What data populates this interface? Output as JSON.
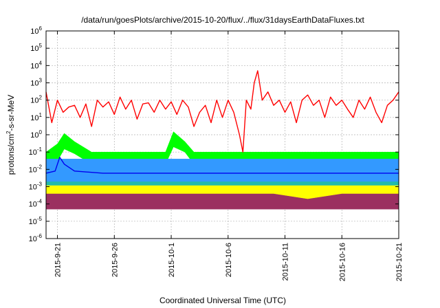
{
  "chart_data": {
    "type": "line",
    "title": "/data/run/goesPlots/archive/2015-10-20/flux/../flux/31daysEarthDataFluxes.txt",
    "xlabel": "Coordinated Universal Time (UTC)",
    "ylabel": {
      "base": "protons/cm",
      "sup": "2",
      "tail": "-s-sr-MeV"
    },
    "x_range": [
      "2015-09-20",
      "2015-10-21"
    ],
    "x_ticks": [
      {
        "date": "2015-09-21",
        "label": "2015-9-21"
      },
      {
        "date": "2015-09-26",
        "label": "2015-9-26"
      },
      {
        "date": "2015-10-01",
        "label": "2015-10-1"
      },
      {
        "date": "2015-10-06",
        "label": "2015-10-6"
      },
      {
        "date": "2015-10-11",
        "label": "2015-10-11"
      },
      {
        "date": "2015-10-16",
        "label": "2015-10-16"
      },
      {
        "date": "2015-10-21",
        "label": "2015-10-21"
      }
    ],
    "y_scale": "log",
    "y_range": [
      1e-06,
      1000000.0
    ],
    "y_ticks": [
      {
        "exp": -6
      },
      {
        "exp": -5
      },
      {
        "exp": -4
      },
      {
        "exp": -3
      },
      {
        "exp": -2
      },
      {
        "exp": -1
      },
      {
        "exp": 0
      },
      {
        "exp": 1
      },
      {
        "exp": 2
      },
      {
        "exp": 3
      },
      {
        "exp": 4
      },
      {
        "exp": 5
      },
      {
        "exp": 6
      }
    ],
    "grid": true,
    "series": [
      {
        "color": "#9b3060",
        "style": "band",
        "x": [
          "2015-09-20",
          "2015-09-25",
          "2015-09-30",
          "2015-10-05",
          "2015-10-10",
          "2015-10-13",
          "2015-10-16",
          "2015-10-21"
        ],
        "low": [
          5e-05,
          5e-05,
          5e-05,
          5e-05,
          5e-05,
          5e-05,
          5e-05,
          5e-05
        ],
        "high": [
          0.0005,
          0.0005,
          0.0005,
          0.0005,
          0.0005,
          0.0004,
          0.0005,
          0.0005
        ]
      },
      {
        "color": "#ffff00",
        "style": "band",
        "x": [
          "2015-09-20",
          "2015-09-25",
          "2015-09-30",
          "2015-10-05",
          "2015-10-10",
          "2015-10-13",
          "2015-10-16",
          "2015-10-21"
        ],
        "low": [
          0.0004,
          0.0004,
          0.0004,
          0.0004,
          0.0004,
          0.0002,
          0.0004,
          0.0004
        ],
        "high": [
          0.0015,
          0.0015,
          0.0015,
          0.0015,
          0.0015,
          0.0012,
          0.0015,
          0.0015
        ]
      },
      {
        "color": "#22bbaa",
        "style": "band",
        "x": [
          "2015-09-20",
          "2015-09-25",
          "2015-09-30",
          "2015-10-05",
          "2015-10-10",
          "2015-10-15",
          "2015-10-21"
        ],
        "low": [
          0.0012,
          0.0012,
          0.0012,
          0.0012,
          0.0012,
          0.0012,
          0.0012
        ],
        "high": [
          0.005,
          0.005,
          0.005,
          0.005,
          0.005,
          0.005,
          0.005
        ]
      },
      {
        "color": "#00ff00",
        "style": "band",
        "x": [
          "2015-09-20",
          "2015-09-21",
          "2015-09-21.6",
          "2015-09-22.5",
          "2015-09-24",
          "2015-09-30.5",
          "2015-10-01.2",
          "2015-10-02.2",
          "2015-10-03",
          "2015-10-10",
          "2015-10-21"
        ],
        "low": [
          0.02,
          0.03,
          0.15,
          0.08,
          0.02,
          0.02,
          0.2,
          0.1,
          0.02,
          0.02,
          0.02
        ],
        "high": [
          0.1,
          0.3,
          1.2,
          0.4,
          0.1,
          0.1,
          1.5,
          0.4,
          0.1,
          0.1,
          0.1
        ]
      },
      {
        "color": "#3399ff",
        "style": "band",
        "x": [
          "2015-09-20",
          "2015-09-25",
          "2015-09-30",
          "2015-10-05",
          "2015-10-10",
          "2015-10-15",
          "2015-10-21"
        ],
        "low": [
          0.002,
          0.002,
          0.002,
          0.002,
          0.002,
          0.002,
          0.002
        ],
        "high": [
          0.04,
          0.04,
          0.04,
          0.04,
          0.04,
          0.04,
          0.04
        ]
      },
      {
        "color": "#0000ee",
        "style": "line",
        "x": [
          "2015-09-20",
          "2015-09-20.8",
          "2015-09-21.2",
          "2015-09-21.6",
          "2015-09-22.5",
          "2015-09-25",
          "2015-09-30",
          "2015-10-05",
          "2015-10-10",
          "2015-10-15",
          "2015-10-21"
        ],
        "y": [
          0.006,
          0.008,
          0.05,
          0.02,
          0.008,
          0.006,
          0.006,
          0.006,
          0.006,
          0.006,
          0.006
        ]
      },
      {
        "color": "#ff0000",
        "style": "line",
        "x": [
          "2015-09-20",
          "2015-09-20.5",
          "2015-09-21",
          "2015-09-21.5",
          "2015-09-22",
          "2015-09-22.5",
          "2015-09-23",
          "2015-09-23.5",
          "2015-09-24",
          "2015-09-24.5",
          "2015-09-25",
          "2015-09-25.5",
          "2015-09-26",
          "2015-09-26.5",
          "2015-09-27",
          "2015-09-27.5",
          "2015-09-28",
          "2015-09-28.5",
          "2015-09-29",
          "2015-09-29.5",
          "2015-09-30",
          "2015-09-30.5",
          "2015-10-01",
          "2015-10-01.5",
          "2015-10-02",
          "2015-10-02.5",
          "2015-10-03",
          "2015-10-03.5",
          "2015-10-04",
          "2015-10-04.5",
          "2015-10-05",
          "2015-10-05.5",
          "2015-10-06",
          "2015-10-06.5",
          "2015-10-07",
          "2015-10-07.3",
          "2015-10-07.6",
          "2015-10-08",
          "2015-10-08.3",
          "2015-10-08.6",
          "2015-10-09",
          "2015-10-09.5",
          "2015-10-10",
          "2015-10-10.5",
          "2015-10-11",
          "2015-10-11.5",
          "2015-10-12",
          "2015-10-12.5",
          "2015-10-13",
          "2015-10-13.5",
          "2015-10-14",
          "2015-10-14.5",
          "2015-10-15",
          "2015-10-15.5",
          "2015-10-16",
          "2015-10-16.5",
          "2015-10-17",
          "2015-10-17.5",
          "2015-10-18",
          "2015-10-18.5",
          "2015-10-19",
          "2015-10-19.5",
          "2015-10-20",
          "2015-10-20.5",
          "2015-10-21"
        ],
        "y": [
          300,
          5,
          100,
          20,
          40,
          50,
          10,
          60,
          3,
          100,
          40,
          80,
          15,
          150,
          30,
          100,
          8,
          60,
          70,
          20,
          100,
          30,
          80,
          15,
          100,
          40,
          3,
          20,
          50,
          5,
          100,
          10,
          100,
          20,
          1,
          0.1,
          100,
          30,
          1000,
          5000,
          100,
          300,
          50,
          100,
          20,
          80,
          5,
          100,
          200,
          50,
          100,
          10,
          150,
          50,
          100,
          30,
          10,
          100,
          30,
          150,
          20,
          5,
          50,
          100,
          300
        ]
      }
    ]
  }
}
